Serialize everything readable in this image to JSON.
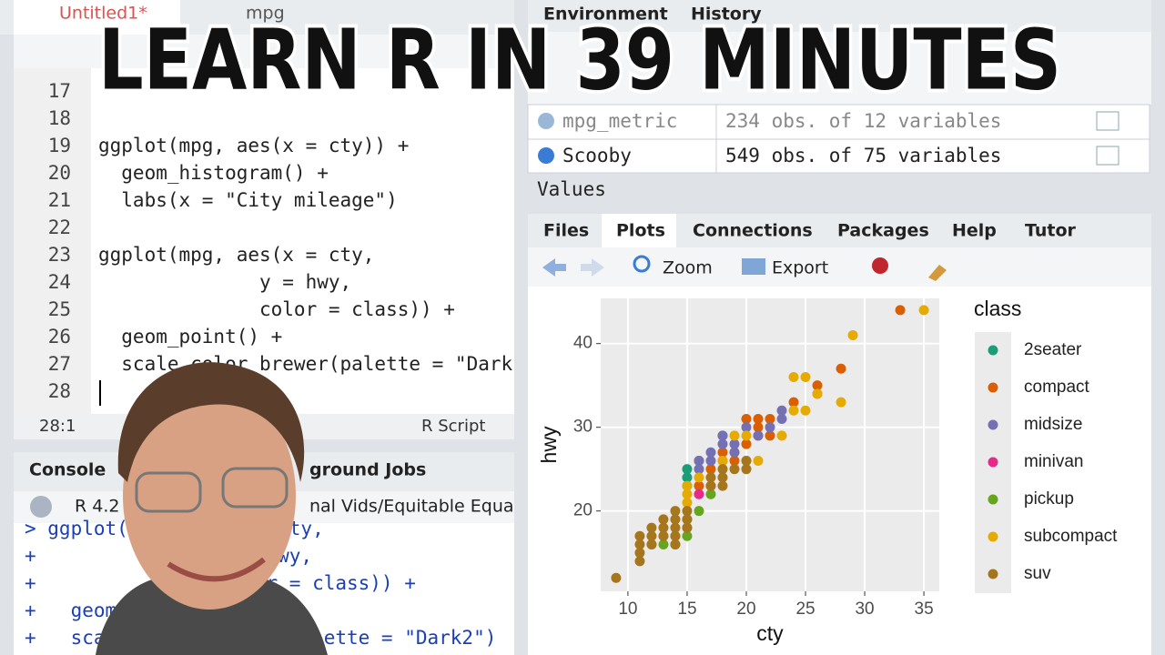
{
  "title": "LEARN R IN 39 MINUTES",
  "editor": {
    "tabs": [
      "Untitled1*",
      "mpg"
    ],
    "lines": [
      {
        "num": "17"
      },
      {
        "num": "18"
      },
      {
        "num": "19",
        "code": "ggplot(mpg, aes(x = cty)) +"
      },
      {
        "num": "20",
        "code": "  geom_histogram() +"
      },
      {
        "num": "21",
        "code": "  labs(x = \"City mileage\")"
      },
      {
        "num": "22"
      },
      {
        "num": "23",
        "code": "ggplot(mpg, aes(x = cty,"
      },
      {
        "num": "24",
        "code": "              y = hwy,"
      },
      {
        "num": "25",
        "code": "              color = class)) +"
      },
      {
        "num": "26",
        "code": "  geom_point() +"
      },
      {
        "num": "27",
        "code": "  scale_color_brewer(palette = \"Dark"
      },
      {
        "num": "28"
      }
    ],
    "status": {
      "position": "28:1",
      "file_type": "R Script"
    }
  },
  "console": {
    "tabs": [
      "Console",
      "ground Jobs"
    ],
    "version": "R 4.2",
    "path": "nal Vids/Equitable Equa",
    "lines": [
      "> ggplot(mpg, aes(x = cty,",
      "+                y = hwy,",
      "+                color = class)) +",
      "+   geom_point() +",
      "+   scale_color_brewer(palette = \"Dark2\")"
    ]
  },
  "environment": {
    "tabs": [
      "Environment",
      "History"
    ],
    "rows": [
      {
        "name": "mpg_metric",
        "desc": "234 obs. of 12 variables"
      },
      {
        "name": "Scooby",
        "desc": "549 obs. of 75 variables"
      }
    ],
    "section": "Values"
  },
  "plots_pane": {
    "tabs": [
      "Files",
      "Plots",
      "Connections",
      "Packages",
      "Help",
      "Tutor"
    ],
    "toolbar": [
      "Zoom",
      "Export"
    ]
  },
  "chart_data": {
    "type": "scatter",
    "x_label": "cty",
    "y_label": "hwy",
    "legend_title": "class",
    "xlim": [
      7.7,
      36.3
    ],
    "ylim": [
      10.4,
      45.4
    ],
    "xticks": [
      10,
      15,
      20,
      25,
      30,
      35
    ],
    "yticks": [
      20,
      30,
      40
    ],
    "grid": true,
    "series": [
      {
        "name": "2seater",
        "color": "#1b9e77",
        "x": [
          16,
          15,
          15,
          15
        ],
        "values": [
          26,
          23,
          25,
          24
        ]
      },
      {
        "name": "compact",
        "color": "#d95f02",
        "x": [
          33,
          28,
          26,
          24,
          21,
          22,
          20,
          19,
          18,
          18,
          21,
          20,
          19,
          16,
          18,
          17,
          22,
          21,
          26
        ],
        "values": [
          44,
          37,
          35,
          33,
          31,
          31,
          31,
          27,
          29,
          27,
          29,
          28,
          26,
          23,
          26,
          25,
          29,
          30,
          34
        ]
      },
      {
        "name": "midsize",
        "color": "#7570b3",
        "x": [
          23,
          22,
          20,
          21,
          19,
          18,
          17,
          18,
          16,
          19,
          17,
          16,
          23
        ],
        "values": [
          32,
          30,
          30,
          29,
          28,
          28,
          26,
          29,
          26,
          27,
          27,
          25,
          31
        ]
      },
      {
        "name": "minivan",
        "color": "#e7298a",
        "x": [
          16,
          17
        ],
        "values": [
          22,
          23
        ]
      },
      {
        "name": "pickup",
        "color": "#66a61e",
        "x": [
          15,
          14,
          13,
          12,
          14,
          16,
          17,
          13,
          15,
          15
        ],
        "values": [
          17,
          17,
          16,
          16,
          16,
          20,
          22,
          17,
          19,
          18
        ]
      },
      {
        "name": "subcompact",
        "color": "#e6ab02",
        "x": [
          35,
          29,
          28,
          25,
          24,
          25,
          24,
          23,
          20,
          19,
          21,
          18,
          15,
          15,
          16,
          15,
          20,
          26
        ],
        "values": [
          44,
          41,
          33,
          36,
          36,
          32,
          32,
          29,
          26,
          29,
          26,
          26,
          22,
          21,
          24,
          23,
          29,
          34
        ]
      },
      {
        "name": "suv",
        "color": "#a6761d",
        "x": [
          9,
          11,
          11,
          11,
          11,
          12,
          12,
          12,
          13,
          13,
          13,
          14,
          14,
          14,
          14,
          15,
          15,
          15,
          14,
          17,
          18,
          18,
          19,
          17,
          20,
          20,
          18
        ],
        "values": [
          12,
          14,
          15,
          16,
          17,
          16,
          17,
          18,
          17,
          18,
          19,
          17,
          18,
          19,
          20,
          20,
          19,
          18,
          16,
          23,
          23,
          24,
          25,
          24,
          25,
          26,
          25
        ]
      }
    ]
  }
}
